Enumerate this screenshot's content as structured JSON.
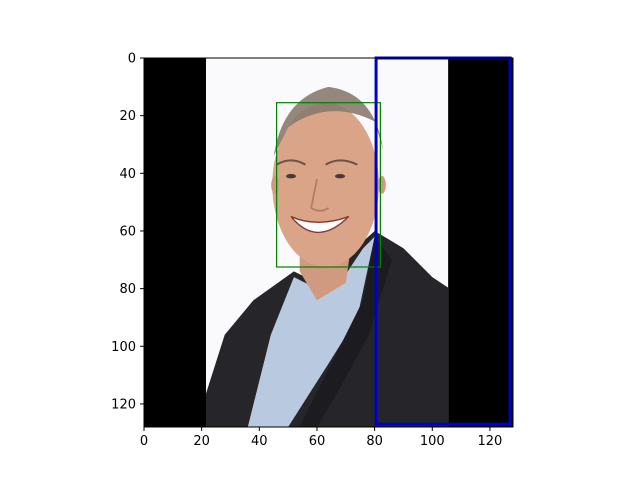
{
  "plot": {
    "xlim": [
      0,
      128
    ],
    "ylim_inverted": [
      128,
      0
    ],
    "x_ticks": [
      {
        "value": 0,
        "label": "0"
      },
      {
        "value": 20,
        "label": "20"
      },
      {
        "value": 40,
        "label": "40"
      },
      {
        "value": 60,
        "label": "60"
      },
      {
        "value": 80,
        "label": "80"
      },
      {
        "value": 100,
        "label": "100"
      },
      {
        "value": 120,
        "label": "120"
      }
    ],
    "y_ticks": [
      {
        "value": 0,
        "label": "0"
      },
      {
        "value": 20,
        "label": "20"
      },
      {
        "value": 40,
        "label": "40"
      },
      {
        "value": 60,
        "label": "60"
      },
      {
        "value": 80,
        "label": "80"
      },
      {
        "value": 100,
        "label": "100"
      },
      {
        "value": 120,
        "label": "120"
      }
    ]
  },
  "image": {
    "description_regions": {
      "left_black_band": {
        "x0": 0,
        "x1": 21.5
      },
      "right_black_band": {
        "x0": 105.5,
        "x1": 128
      }
    }
  },
  "boxes": [
    {
      "name": "face-box",
      "color": "#008000",
      "x0": 46,
      "y0": 15.5,
      "x1": 82,
      "y1": 72.5
    },
    {
      "name": "crop-box",
      "color": "#0000cc",
      "x0": 80.5,
      "y0": 0,
      "x1": 127,
      "y1": 127
    }
  ],
  "colors": {
    "background": "#fafafc",
    "black_band": "#000000",
    "jacket": "#26262a",
    "shirt": "#b9c9e0",
    "skin": "#d9a488",
    "hair": "#8a7a6e"
  }
}
